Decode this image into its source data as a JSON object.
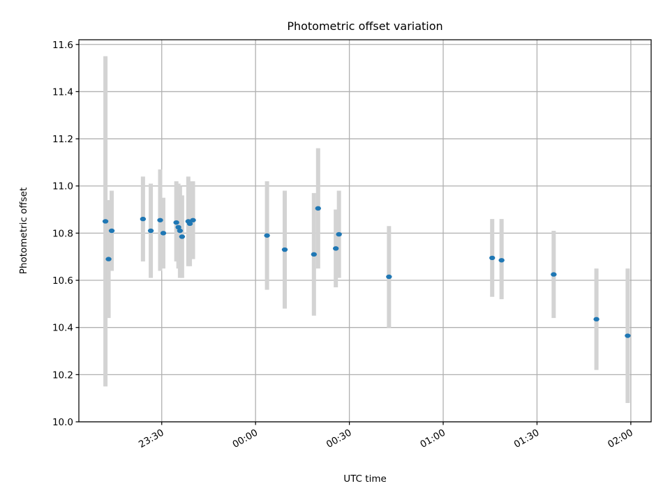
{
  "chart_data": {
    "type": "scatter",
    "title": "Photometric offset variation",
    "xlabel": "UTC time",
    "ylabel": "Photometric offset",
    "grid": true,
    "x_axis": {
      "kind": "time",
      "min": "23:03:30",
      "max": "02:06:30",
      "ticks": [
        "23:30",
        "00:00",
        "00:30",
        "01:00",
        "01:30",
        "02:00"
      ],
      "tick_label_rotation": 30
    },
    "y_axis": {
      "min": 10.0,
      "max": 11.62,
      "ticks": [
        "10.0",
        "10.2",
        "10.4",
        "10.6",
        "10.8",
        "11.0",
        "11.2",
        "11.4",
        "11.6"
      ]
    },
    "colors": {
      "marker": "#1f77b4",
      "errorbar": "#d3d3d3"
    },
    "points": [
      {
        "x": "23:12:00",
        "y": 10.85,
        "yerr_low": 10.15,
        "yerr_high": 11.55
      },
      {
        "x": "23:13:00",
        "y": 10.69,
        "yerr_low": 10.44,
        "yerr_high": 10.94
      },
      {
        "x": "23:14:00",
        "y": 10.81,
        "yerr_low": 10.64,
        "yerr_high": 10.98
      },
      {
        "x": "23:24:00",
        "y": 10.86,
        "yerr_low": 10.68,
        "yerr_high": 11.04
      },
      {
        "x": "23:26:30",
        "y": 10.81,
        "yerr_low": 10.61,
        "yerr_high": 11.01
      },
      {
        "x": "23:29:30",
        "y": 10.855,
        "yerr_low": 10.64,
        "yerr_high": 11.07
      },
      {
        "x": "23:30:30",
        "y": 10.8,
        "yerr_low": 10.65,
        "yerr_high": 10.95
      },
      {
        "x": "23:34:40",
        "y": 10.845,
        "yerr_low": 10.68,
        "yerr_high": 11.02
      },
      {
        "x": "23:35:20",
        "y": 10.825,
        "yerr_low": 10.65,
        "yerr_high": 11.01
      },
      {
        "x": "23:35:50",
        "y": 10.81,
        "yerr_low": 10.61,
        "yerr_high": 11.0
      },
      {
        "x": "23:36:30",
        "y": 10.785,
        "yerr_low": 10.61,
        "yerr_high": 10.96
      },
      {
        "x": "23:38:30",
        "y": 10.85,
        "yerr_low": 10.66,
        "yerr_high": 11.04
      },
      {
        "x": "23:39:00",
        "y": 10.84,
        "yerr_low": 10.66,
        "yerr_high": 11.02
      },
      {
        "x": "23:40:00",
        "y": 10.855,
        "yerr_low": 10.69,
        "yerr_high": 11.02
      },
      {
        "x": "00:03:40",
        "y": 10.79,
        "yerr_low": 10.56,
        "yerr_high": 11.02
      },
      {
        "x": "00:09:20",
        "y": 10.73,
        "yerr_low": 10.48,
        "yerr_high": 10.98
      },
      {
        "x": "00:18:40",
        "y": 10.71,
        "yerr_low": 10.45,
        "yerr_high": 10.97
      },
      {
        "x": "00:20:00",
        "y": 10.905,
        "yerr_low": 10.65,
        "yerr_high": 11.16
      },
      {
        "x": "00:25:40",
        "y": 10.735,
        "yerr_low": 10.57,
        "yerr_high": 10.9
      },
      {
        "x": "00:26:40",
        "y": 10.795,
        "yerr_low": 10.61,
        "yerr_high": 10.98
      },
      {
        "x": "00:42:40",
        "y": 10.615,
        "yerr_low": 10.4,
        "yerr_high": 10.83
      },
      {
        "x": "01:15:40",
        "y": 10.695,
        "yerr_low": 10.53,
        "yerr_high": 10.86
      },
      {
        "x": "01:18:40",
        "y": 10.685,
        "yerr_low": 10.52,
        "yerr_high": 10.86
      },
      {
        "x": "01:35:20",
        "y": 10.625,
        "yerr_low": 10.44,
        "yerr_high": 10.81
      },
      {
        "x": "01:49:00",
        "y": 10.435,
        "yerr_low": 10.22,
        "yerr_high": 10.65
      },
      {
        "x": "01:59:00",
        "y": 10.365,
        "yerr_low": 10.08,
        "yerr_high": 10.65
      }
    ]
  }
}
